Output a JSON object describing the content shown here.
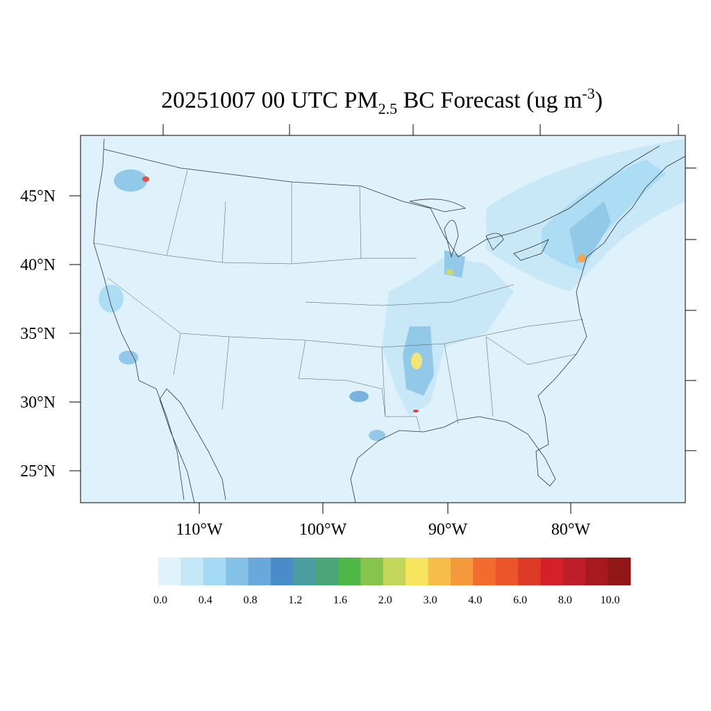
{
  "title": {
    "main": "20251007 00 UTC PM",
    "sub": "2.5",
    "middle": " BC Forecast (ug m",
    "sup": "-3",
    "end": ")"
  },
  "map": {
    "lat_labels": [
      "45°N",
      "40°N",
      "35°N",
      "30°N",
      "25°N"
    ],
    "lon_labels": [
      "110°W",
      "100°W",
      "90°W",
      "80°W"
    ]
  },
  "colorbar": {
    "colors": [
      "#e0f3fb",
      "#c4e6f7",
      "#a5daf5",
      "#85c1e6",
      "#68a8da",
      "#4a8cca",
      "#4a9ea0",
      "#4aa677",
      "#4db848",
      "#86c44e",
      "#c2d75a",
      "#f7e55e",
      "#f7bd4a",
      "#f59a3c",
      "#f26d2d",
      "#ea5529",
      "#de3b26",
      "#d32029",
      "#be1e2a",
      "#a8191f",
      "#901617"
    ],
    "labels": [
      "0.0",
      "0.4",
      "0.8",
      "1.2",
      "1.6",
      "2.0",
      "3.0",
      "4.0",
      "6.0",
      "8.0",
      "10.0"
    ]
  }
}
